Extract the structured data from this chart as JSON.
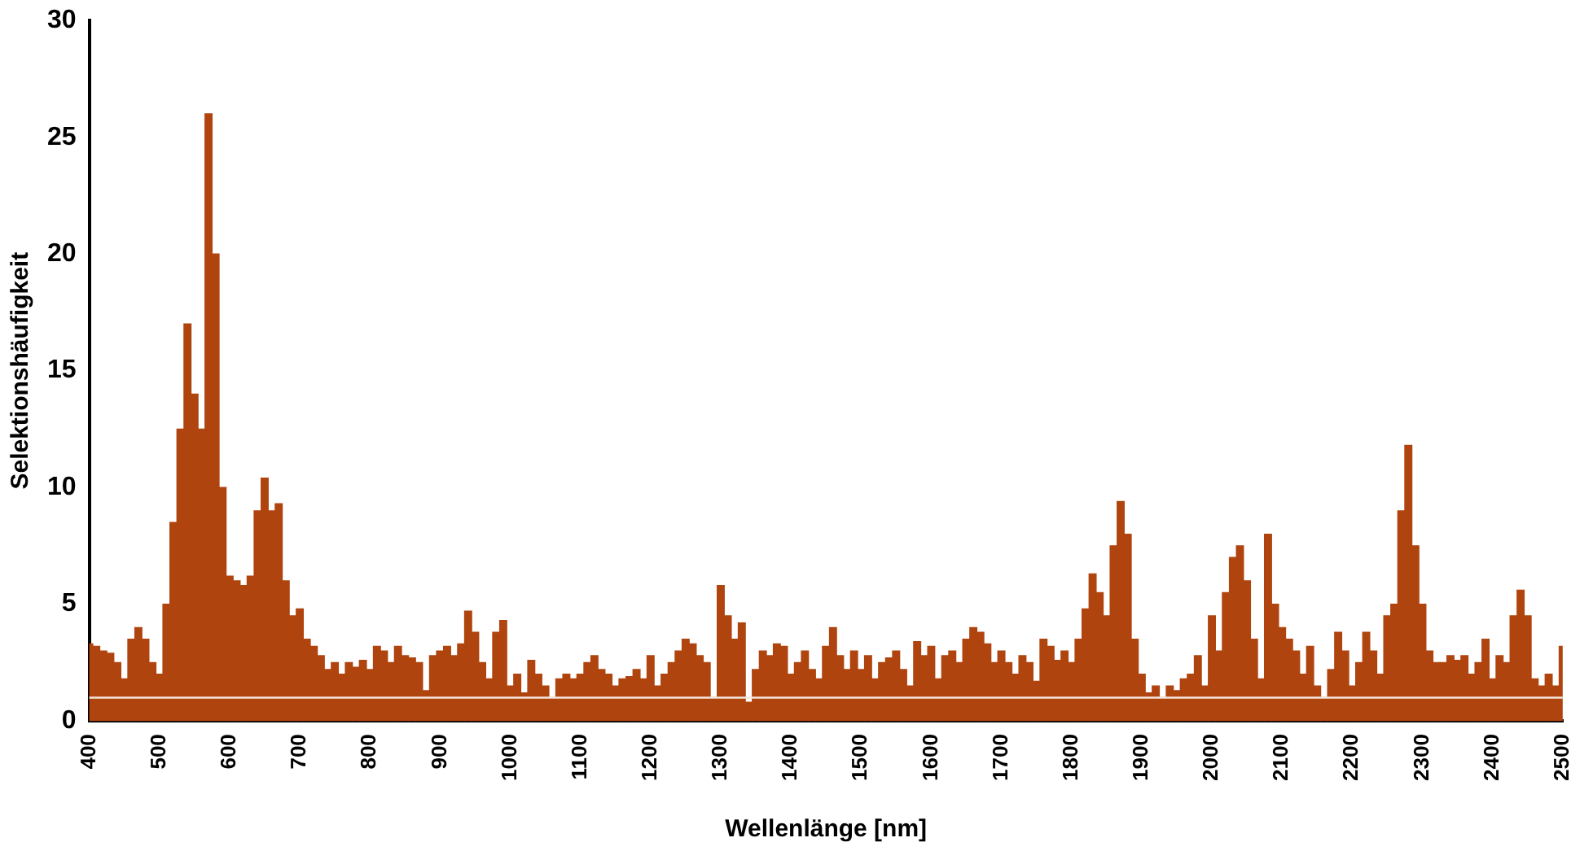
{
  "chart_data": {
    "type": "bar",
    "xlabel": "Wellenlänge [nm]",
    "ylabel": "Selektionshäufigkeit",
    "color": "#b0440f",
    "x": [
      400,
      410,
      420,
      430,
      440,
      450,
      460,
      470,
      480,
      490,
      500,
      510,
      520,
      530,
      540,
      550,
      560,
      570,
      580,
      590,
      600,
      610,
      620,
      630,
      640,
      650,
      660,
      670,
      680,
      690,
      700,
      710,
      720,
      730,
      740,
      750,
      760,
      770,
      780,
      790,
      800,
      810,
      820,
      830,
      840,
      850,
      860,
      870,
      880,
      890,
      900,
      910,
      920,
      930,
      940,
      950,
      960,
      970,
      980,
      990,
      1000,
      1010,
      1020,
      1030,
      1040,
      1050,
      1060,
      1070,
      1080,
      1090,
      1100,
      1110,
      1120,
      1130,
      1140,
      1150,
      1160,
      1170,
      1180,
      1190,
      1200,
      1210,
      1220,
      1230,
      1240,
      1250,
      1260,
      1270,
      1280,
      1290,
      1300,
      1310,
      1320,
      1330,
      1340,
      1350,
      1360,
      1370,
      1380,
      1390,
      1400,
      1410,
      1420,
      1430,
      1440,
      1450,
      1460,
      1470,
      1480,
      1490,
      1500,
      1510,
      1520,
      1530,
      1540,
      1550,
      1560,
      1570,
      1580,
      1590,
      1600,
      1610,
      1620,
      1630,
      1640,
      1650,
      1660,
      1670,
      1680,
      1690,
      1700,
      1710,
      1720,
      1730,
      1740,
      1750,
      1760,
      1770,
      1780,
      1790,
      1800,
      1810,
      1820,
      1830,
      1840,
      1850,
      1860,
      1870,
      1880,
      1890,
      1900,
      1910,
      1920,
      1930,
      1940,
      1950,
      1960,
      1970,
      1980,
      1990,
      2000,
      2010,
      2020,
      2030,
      2040,
      2050,
      2060,
      2070,
      2080,
      2090,
      2100,
      2110,
      2120,
      2130,
      2140,
      2150,
      2160,
      2170,
      2180,
      2190,
      2200,
      2210,
      2220,
      2230,
      2240,
      2250,
      2260,
      2270,
      2280,
      2290,
      2300,
      2310,
      2320,
      2330,
      2340,
      2350,
      2360,
      2370,
      2380,
      2390,
      2400,
      2410,
      2420,
      2430,
      2440,
      2450,
      2460,
      2470,
      2480,
      2490,
      2500
    ],
    "values": [
      3.3,
      3.2,
      3.0,
      2.9,
      2.5,
      1.8,
      3.5,
      4.0,
      3.5,
      2.5,
      2,
      5,
      8.5,
      12.5,
      17,
      14,
      12.5,
      26,
      20,
      10,
      6.2,
      6.0,
      5.8,
      6.2,
      9,
      10.4,
      9,
      9.3,
      6,
      4.5,
      4.8,
      3.5,
      3.2,
      2.8,
      2.2,
      2.5,
      2.0,
      2.5,
      2.3,
      2.6,
      2.2,
      3.2,
      3.0,
      2.5,
      3.2,
      2.8,
      2.7,
      2.5,
      1.3,
      2.8,
      3.0,
      3.2,
      2.8,
      3.3,
      4.7,
      3.8,
      2.5,
      1.8,
      3.8,
      4.3,
      1.5,
      2.0,
      1.2,
      2.6,
      2.0,
      1.5,
      1.0,
      1.8,
      2.0,
      1.8,
      2.0,
      2.5,
      2.8,
      2.2,
      2.0,
      1.5,
      1.8,
      1.9,
      2.2,
      1.8,
      2.8,
      1.5,
      2.0,
      2.5,
      3.0,
      3.5,
      3.3,
      2.8,
      2.5,
      1.0,
      5.8,
      4.5,
      3.5,
      4.2,
      0.8,
      2.2,
      3.0,
      2.8,
      3.3,
      3.2,
      2.0,
      2.5,
      3.0,
      2.2,
      1.8,
      3.2,
      4.0,
      2.8,
      2.2,
      3.0,
      2.2,
      2.8,
      1.8,
      2.5,
      2.7,
      3.0,
      2.2,
      1.5,
      3.4,
      2.8,
      3.2,
      1.8,
      2.8,
      3.0,
      2.5,
      3.5,
      4.0,
      3.8,
      3.3,
      2.5,
      3.0,
      2.5,
      2.0,
      2.8,
      2.5,
      1.7,
      3.5,
      3.2,
      2.6,
      3.0,
      2.5,
      3.5,
      4.8,
      6.3,
      5.5,
      4.5,
      7.5,
      9.4,
      8.0,
      3.5,
      2.0,
      1.2,
      1.5,
      1.0,
      1.5,
      1.3,
      1.8,
      2.0,
      2.8,
      1.5,
      4.5,
      3.0,
      5.5,
      7.0,
      7.5,
      6.0,
      3.5,
      1.8,
      8.0,
      5.0,
      4.0,
      3.5,
      3.0,
      2.0,
      3.2,
      1.5,
      1.0,
      2.2,
      3.8,
      3.0,
      1.5,
      2.5,
      3.8,
      3.0,
      2.0,
      4.5,
      5.0,
      9.0,
      11.8,
      7.5,
      5.0,
      3.0,
      2.5,
      2.5,
      2.8,
      2.6,
      2.8,
      2.0,
      2.5,
      3.5,
      1.8,
      2.8,
      2.5,
      4.5,
      5.6,
      4.5,
      1.8,
      1.5,
      2.0,
      1.5,
      3.2
    ],
    "xlim": [
      400,
      2500
    ],
    "xticks": [
      400,
      500,
      600,
      700,
      800,
      900,
      1000,
      1100,
      1200,
      1300,
      1400,
      1500,
      1600,
      1700,
      1800,
      1900,
      2000,
      2100,
      2200,
      2300,
      2400,
      2500
    ],
    "ylim": [
      0,
      30
    ],
    "yticks": [
      0,
      5,
      10,
      15,
      20,
      25,
      30
    ],
    "ref_lines": [
      {
        "axis": "y",
        "value": 1,
        "color": "#f5e6dc"
      }
    ]
  }
}
